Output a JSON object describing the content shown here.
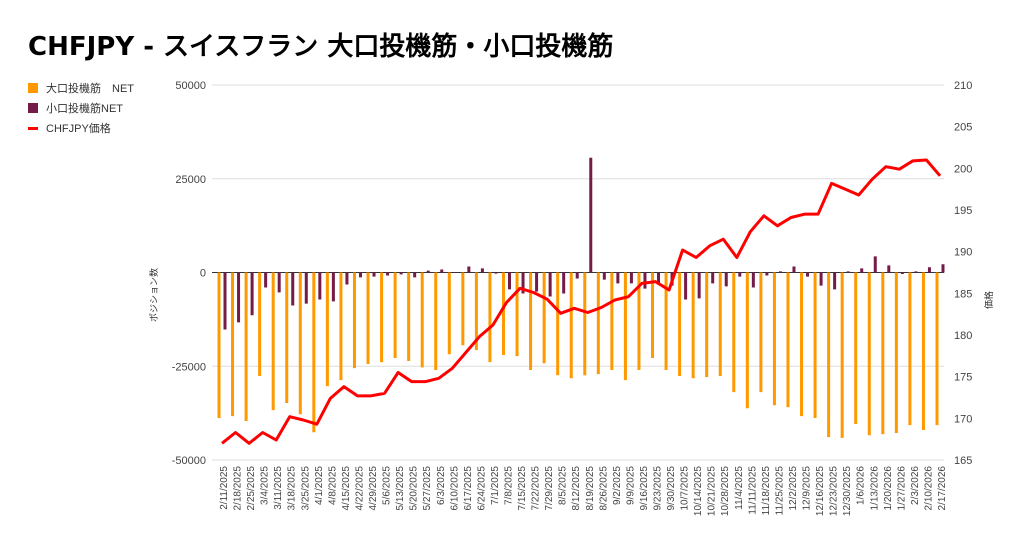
{
  "chart_data": {
    "type": "bar+line",
    "title": "CHFJPY - スイスフラン 大口投機筋・小口投機筋",
    "ylabel_left": "ポジション数",
    "ylabel_right": "価格",
    "ylim_left": [
      -50000,
      50000
    ],
    "yticks_left": [
      "50000",
      "25000",
      "0",
      "-25000",
      "-50000"
    ],
    "ylim_right": [
      165,
      210
    ],
    "yticks_right": [
      "210",
      "205",
      "200",
      "195",
      "190",
      "185",
      "180",
      "175",
      "170",
      "165"
    ],
    "legend_position": "left",
    "grid": true,
    "colors": {
      "large": "#FF9900",
      "small": "#741B47",
      "price": "#FF0000"
    },
    "categories": [
      "2/11/2025",
      "2/18/2025",
      "2/25/2025",
      "3/4/2025",
      "3/11/2025",
      "3/18/2025",
      "3/25/2025",
      "4/1/2025",
      "4/8/2025",
      "4/15/2025",
      "4/22/2025",
      "4/29/2025",
      "5/6/2025",
      "5/13/2025",
      "5/20/2025",
      "5/27/2025",
      "6/3/2025",
      "6/10/2025",
      "6/17/2025",
      "6/24/2025",
      "7/1/2025",
      "7/8/2025",
      "7/15/2025",
      "7/22/2025",
      "7/29/2025",
      "8/5/2025",
      "8/12/2025",
      "8/19/2025",
      "8/26/2025",
      "9/2/2025",
      "9/9/2025",
      "9/16/2025",
      "9/23/2025",
      "9/30/2025",
      "10/7/2025",
      "10/14/2025",
      "10/21/2025",
      "10/28/2025",
      "11/4/2025",
      "11/11/2025",
      "11/18/2025",
      "11/25/2025",
      "12/2/2025",
      "12/9/2025",
      "12/16/2025",
      "12/23/2025",
      "12/30/2025",
      "1/6/2026",
      "1/13/2026",
      "1/20/2026",
      "1/27/2026",
      "2/3/2026",
      "2/10/2026",
      "2/17/2026"
    ],
    "series": [
      {
        "name": "大口投機筋　NET",
        "axis": "left",
        "type": "bar",
        "values": [
          -38800,
          -38300,
          -39600,
          -27600,
          -36700,
          -34800,
          -37800,
          -42600,
          -30300,
          -28700,
          -25500,
          -24400,
          -23900,
          -22800,
          -23600,
          -25300,
          -26000,
          -21800,
          -19400,
          -20700,
          -23900,
          -22000,
          -22300,
          -26000,
          -24200,
          -27400,
          -28200,
          -27400,
          -27100,
          -26000,
          -28700,
          -26000,
          -22800,
          -26000,
          -27600,
          -28200,
          -27900,
          -27600,
          -31900,
          -36200,
          -31900,
          -35400,
          -35900,
          -38300,
          -38800,
          -43900,
          -44100,
          -40400,
          -43400,
          -43100,
          -42800,
          -40700,
          -42000,
          -40700
        ]
      },
      {
        "name": "小口投機筋NET",
        "axis": "left",
        "type": "bar",
        "values": [
          -15200,
          -13300,
          -11400,
          -4000,
          -5300,
          -8800,
          -8300,
          -7200,
          -7700,
          -3200,
          -1300,
          -1100,
          -800,
          -500,
          -1300,
          500,
          800,
          0,
          1600,
          1100,
          -300,
          -4500,
          -5600,
          -5100,
          -6400,
          -5600,
          -1600,
          30600,
          -1900,
          -2900,
          -2900,
          -4300,
          -2900,
          -3500,
          -7200,
          -6900,
          -2900,
          -3700,
          -1100,
          -4000,
          -800,
          300,
          1600,
          -1100,
          -3500,
          -4500,
          300,
          1100,
          4300,
          1900,
          -400,
          300,
          1400,
          2200
        ]
      },
      {
        "name": "CHFJPY価格",
        "axis": "right",
        "type": "line",
        "values": [
          167.0,
          168.3,
          167.0,
          168.3,
          167.4,
          170.2,
          169.8,
          169.3,
          172.4,
          173.8,
          172.7,
          172.7,
          173.0,
          175.5,
          174.4,
          174.4,
          174.8,
          176.0,
          177.9,
          179.8,
          181.2,
          183.9,
          185.6,
          185.1,
          184.3,
          182.6,
          183.2,
          182.7,
          183.3,
          184.2,
          184.6,
          186.2,
          186.4,
          185.4,
          190.2,
          189.3,
          190.7,
          191.5,
          189.3,
          192.4,
          194.3,
          193.1,
          194.1,
          194.5,
          194.5,
          198.2,
          197.5,
          196.8,
          198.7,
          200.2,
          199.9,
          200.9,
          201.0,
          199.1
        ]
      }
    ]
  }
}
